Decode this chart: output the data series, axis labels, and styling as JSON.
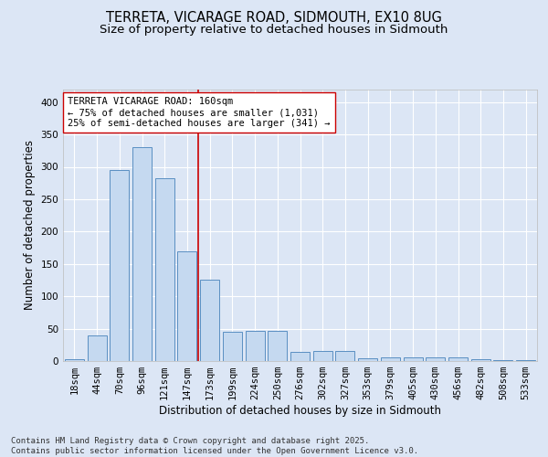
{
  "title_line1": "TERRETA, VICARAGE ROAD, SIDMOUTH, EX10 8UG",
  "title_line2": "Size of property relative to detached houses in Sidmouth",
  "xlabel": "Distribution of detached houses by size in Sidmouth",
  "ylabel": "Number of detached properties",
  "categories": [
    "18sqm",
    "44sqm",
    "70sqm",
    "96sqm",
    "121sqm",
    "147sqm",
    "173sqm",
    "199sqm",
    "224sqm",
    "250sqm",
    "276sqm",
    "302sqm",
    "327sqm",
    "353sqm",
    "379sqm",
    "405sqm",
    "430sqm",
    "456sqm",
    "482sqm",
    "508sqm",
    "533sqm"
  ],
  "values": [
    3,
    39,
    295,
    330,
    283,
    170,
    125,
    45,
    46,
    46,
    14,
    15,
    15,
    4,
    5,
    5,
    5,
    5,
    3,
    1,
    2
  ],
  "bar_color": "#c5d9f0",
  "bar_edge_color": "#5a8fc2",
  "background_color": "#dce6f5",
  "grid_color": "#ffffff",
  "vline_x": 5.5,
  "vline_color": "#cc0000",
  "annotation_text": "TERRETA VICARAGE ROAD: 160sqm\n← 75% of detached houses are smaller (1,031)\n25% of semi-detached houses are larger (341) →",
  "annotation_box_color": "#ffffff",
  "annotation_box_edge": "#cc0000",
  "ylim": [
    0,
    420
  ],
  "yticks": [
    0,
    50,
    100,
    150,
    200,
    250,
    300,
    350,
    400
  ],
  "footer_text": "Contains HM Land Registry data © Crown copyright and database right 2025.\nContains public sector information licensed under the Open Government Licence v3.0.",
  "title_fontsize": 10.5,
  "subtitle_fontsize": 9.5,
  "axis_label_fontsize": 8.5,
  "tick_fontsize": 7.5,
  "annotation_fontsize": 7.5,
  "footer_fontsize": 6.5
}
